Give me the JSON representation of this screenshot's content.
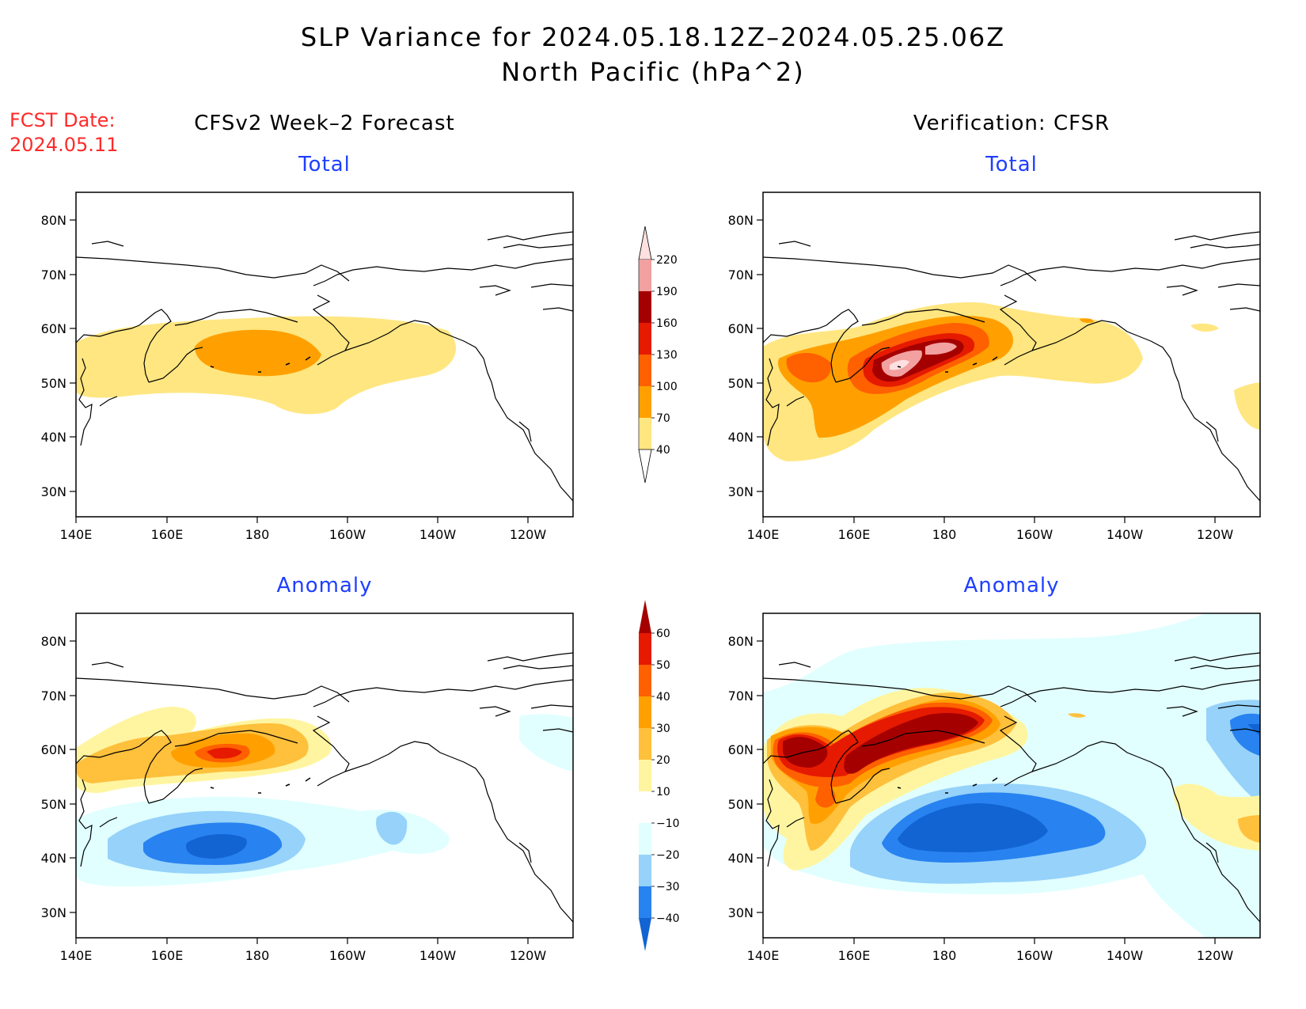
{
  "header": {
    "title_line1": "SLP Variance for 2024.05.18.12Z–2024.05.25.06Z",
    "title_line2": "North Pacific (hPa^2)",
    "fcst_label": "FCST Date:",
    "fcst_date": "2024.05.11"
  },
  "columns": {
    "left": "CFSv2 Week–2 Forecast",
    "right": "Verification: CFSR"
  },
  "panels": {
    "fcst_total": "Total",
    "fcst_anom": "Anomaly",
    "ver_total": "Total",
    "ver_anom": "Anomaly"
  },
  "axes": {
    "lon": [
      "140E",
      "160E",
      "180",
      "160W",
      "140W",
      "120W"
    ],
    "lat": [
      "80N",
      "70N",
      "60N",
      "50N",
      "40N",
      "30N"
    ]
  },
  "colorbars": {
    "total": {
      "levels": [
        "40",
        "70",
        "100",
        "130",
        "160",
        "190",
        "220"
      ],
      "colors": [
        "#ffe680",
        "#ffa000",
        "#ff6000",
        "#e51a00",
        "#a50000",
        "#f2a0a0",
        "#ffe0e0"
      ]
    },
    "anomaly": {
      "levels": [
        "−40",
        "−30",
        "−20",
        "−10",
        "10",
        "20",
        "30",
        "40",
        "50",
        "60"
      ],
      "colors": [
        "#1264d2",
        "#2882f0",
        "#96d2fa",
        "#e1ffff",
        "#ffffff",
        "#fff5a0",
        "#ffc03c",
        "#ffa000",
        "#ff6000",
        "#e51a00",
        "#a50000"
      ]
    }
  }
}
